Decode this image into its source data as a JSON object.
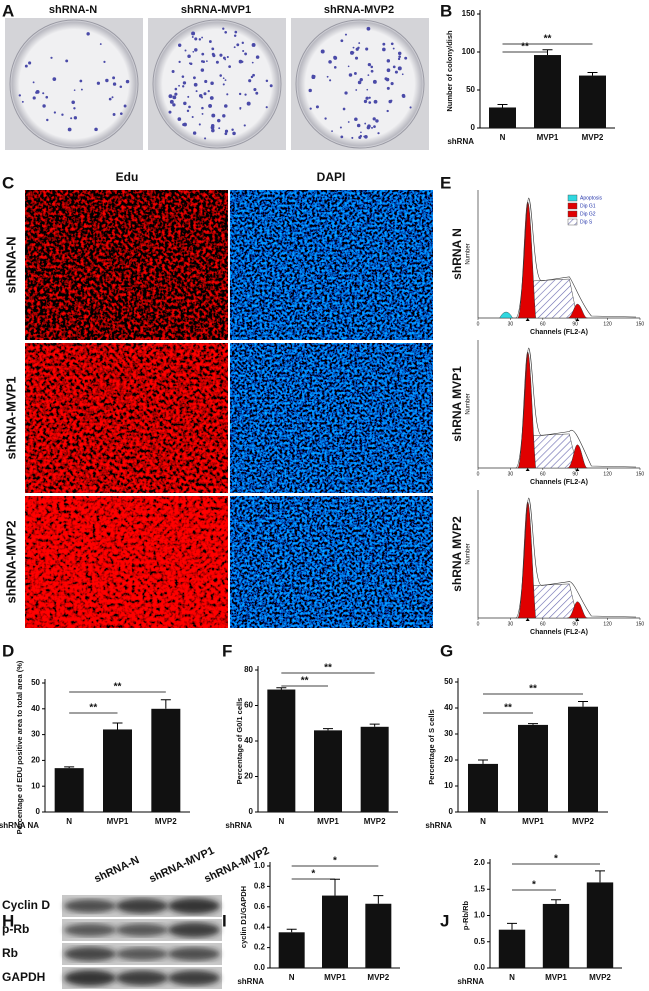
{
  "panel_letters": [
    "A",
    "B",
    "C",
    "D",
    "E",
    "F",
    "G",
    "H",
    "I",
    "J"
  ],
  "colony_dishes": [
    "shRNA-N",
    "shRNA-MVP1",
    "shRNA-MVP2"
  ],
  "edu_dapi": {
    "columns": [
      "Edu",
      "DAPI"
    ],
    "rows": [
      "shRNA-N",
      "shRNA-MVP1",
      "shRNA-MVP2"
    ]
  },
  "flow_cytometry": {
    "rows": [
      "shRNA N",
      "shRNA MVP1",
      "shRNA MVP2"
    ],
    "legend": [
      "Apoptosis",
      "Dip G1",
      "Dip G2",
      "Dip S"
    ],
    "x_label": "Channels (FL2-A)",
    "y_label": "Number",
    "xticks": [
      0,
      30,
      60,
      90,
      120,
      150
    ]
  },
  "western_blot": {
    "lanes": [
      "shRNA-N",
      "shRNA-MVP1",
      "shRNA-MVP2"
    ],
    "rows": [
      "Cyclin D",
      "p-Rb",
      "Rb",
      "GAPDH"
    ]
  },
  "chart_data": [
    {
      "type": "bar",
      "y_label": "Number of colony/dish",
      "x_label": "shRNA",
      "categories": [
        "N",
        "MVP1",
        "MVP2"
      ],
      "values": [
        27,
        96,
        69
      ],
      "errors": [
        4,
        7,
        4
      ],
      "color": "#111111",
      "ylim": [
        0,
        150
      ],
      "yticks": [
        0,
        50,
        100,
        150
      ],
      "comparisons": [
        {
          "pair": [
            "N",
            "MVP1"
          ],
          "label": "**"
        },
        {
          "pair": [
            "N",
            "MVP2"
          ],
          "label": "**"
        }
      ]
    },
    {
      "type": "bar",
      "y_label": "Percentage of EDU positive area to total area (%)",
      "x_label": "shRNA NA",
      "categories": [
        "N",
        "MVP1",
        "MVP2"
      ],
      "values": [
        17,
        32,
        40
      ],
      "errors": [
        0.5,
        2.5,
        3.5
      ],
      "color": "#111111",
      "ylim": [
        0,
        50
      ],
      "yticks": [
        0,
        10,
        20,
        30,
        40,
        50
      ],
      "comparisons": [
        {
          "pair": [
            "N",
            "MVP1"
          ],
          "label": "**"
        },
        {
          "pair": [
            "N",
            "MVP2"
          ],
          "label": "**"
        }
      ]
    },
    {
      "type": "bar",
      "y_label": "Percentage of G0/1 cells",
      "x_label": "shRNA",
      "categories": [
        "N",
        "MVP1",
        "MVP2"
      ],
      "values": [
        69,
        46,
        48
      ],
      "errors": [
        1,
        1,
        1.5
      ],
      "color": "#111111",
      "ylim": [
        0,
        80
      ],
      "yticks": [
        0,
        20,
        40,
        60,
        80
      ],
      "comparisons": [
        {
          "pair": [
            "N",
            "MVP1"
          ],
          "label": "**"
        },
        {
          "pair": [
            "N",
            "MVP2"
          ],
          "label": "**"
        }
      ]
    },
    {
      "type": "bar",
      "y_label": "Percentage of S cells",
      "x_label": "shRNA",
      "categories": [
        "N",
        "MVP1",
        "MVP2"
      ],
      "values": [
        18.5,
        33.5,
        40.5
      ],
      "errors": [
        1.5,
        0.5,
        2
      ],
      "color": "#111111",
      "ylim": [
        0,
        50
      ],
      "yticks": [
        0,
        10,
        20,
        30,
        40,
        50
      ],
      "comparisons": [
        {
          "pair": [
            "N",
            "MVP1"
          ],
          "label": "**"
        },
        {
          "pair": [
            "N",
            "MVP2"
          ],
          "label": "**"
        }
      ]
    },
    {
      "type": "bar",
      "y_label": "cyclin D1/GAPDH",
      "x_label": "shRNA",
      "categories": [
        "N",
        "MVP1",
        "MVP2"
      ],
      "values": [
        0.35,
        0.71,
        0.63
      ],
      "errors": [
        0.03,
        0.16,
        0.08
      ],
      "color": "#111111",
      "ylim": [
        0,
        1
      ],
      "yticks": [
        {
          "value": 0,
          "label": "0.0"
        },
        0.2,
        0.4,
        0.6,
        0.8,
        {
          "value": 1,
          "label": "1.0"
        }
      ],
      "comparisons": [
        {
          "pair": [
            "N",
            "MVP1"
          ],
          "label": "*"
        },
        {
          "pair": [
            "N",
            "MVP2"
          ],
          "label": "*"
        }
      ]
    },
    {
      "type": "bar",
      "y_label": "p-Rb/Rb",
      "x_label": "shRNA",
      "categories": [
        "N",
        "MVP1",
        "MVP2"
      ],
      "values": [
        0.73,
        1.22,
        1.63
      ],
      "errors": [
        0.12,
        0.08,
        0.22
      ],
      "color": "#111111",
      "ylim": [
        0,
        2
      ],
      "yticks": [
        {
          "value": 0,
          "label": "0.0"
        },
        0.5,
        {
          "value": 1,
          "label": "1.0"
        },
        1.5,
        {
          "value": 2,
          "label": "2.0"
        }
      ],
      "comparisons": [
        {
          "pair": [
            "N",
            "MVP1"
          ],
          "label": "*"
        },
        {
          "pair": [
            "N",
            "MVP2"
          ],
          "label": "*"
        }
      ]
    }
  ]
}
